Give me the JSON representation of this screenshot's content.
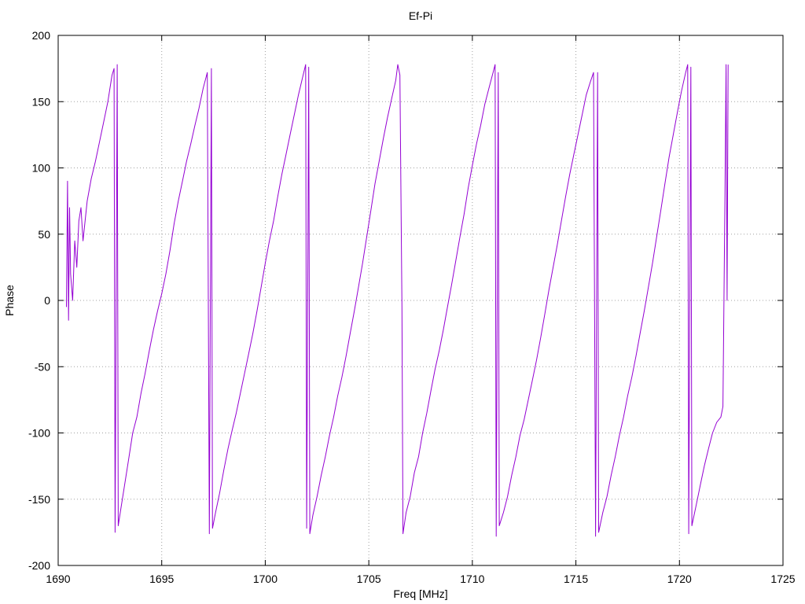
{
  "chart_data": {
    "type": "line",
    "title": "Ef-Pi",
    "xlabel": "Freq [MHz]",
    "ylabel": "Phase",
    "xlim": [
      1690,
      1725
    ],
    "ylim": [
      -200,
      200
    ],
    "xticks": [
      1690,
      1695,
      1700,
      1705,
      1710,
      1715,
      1720,
      1725
    ],
    "yticks": [
      -200,
      -150,
      -100,
      -50,
      0,
      50,
      100,
      150,
      200
    ],
    "grid": true,
    "legend": "none",
    "colors": {
      "series": "#9400d3"
    },
    "series": [
      {
        "points": [
          [
            1690.4,
            -5
          ],
          [
            1690.45,
            90
          ],
          [
            1690.5,
            -15
          ],
          [
            1690.55,
            70
          ],
          [
            1690.6,
            20
          ],
          [
            1690.7,
            0
          ],
          [
            1690.8,
            45
          ],
          [
            1690.9,
            25
          ],
          [
            1691.0,
            60
          ],
          [
            1691.1,
            70
          ],
          [
            1691.2,
            45
          ],
          [
            1691.4,
            75
          ],
          [
            1691.6,
            92
          ],
          [
            1691.8,
            105
          ],
          [
            1692.0,
            120
          ],
          [
            1692.2,
            135
          ],
          [
            1692.4,
            150
          ],
          [
            1692.6,
            170
          ],
          [
            1692.7,
            175
          ],
          [
            1692.75,
            -175
          ],
          [
            1692.8,
            0
          ],
          [
            1692.85,
            178
          ],
          [
            1692.9,
            -170
          ],
          [
            1693.0,
            -160
          ],
          [
            1693.2,
            -140
          ],
          [
            1693.4,
            -120
          ],
          [
            1693.6,
            -100
          ],
          [
            1693.8,
            -88
          ],
          [
            1694.0,
            -70
          ],
          [
            1694.2,
            -55
          ],
          [
            1694.4,
            -38
          ],
          [
            1694.6,
            -22
          ],
          [
            1694.8,
            -8
          ],
          [
            1695.0,
            5
          ],
          [
            1695.2,
            20
          ],
          [
            1695.4,
            38
          ],
          [
            1695.6,
            58
          ],
          [
            1695.8,
            75
          ],
          [
            1696.0,
            90
          ],
          [
            1696.2,
            105
          ],
          [
            1696.4,
            118
          ],
          [
            1696.6,
            132
          ],
          [
            1696.8,
            145
          ],
          [
            1697.0,
            160
          ],
          [
            1697.2,
            172
          ],
          [
            1697.3,
            -176
          ],
          [
            1697.35,
            5
          ],
          [
            1697.4,
            175
          ],
          [
            1697.45,
            -172
          ],
          [
            1697.6,
            -160
          ],
          [
            1697.8,
            -145
          ],
          [
            1698.0,
            -128
          ],
          [
            1698.2,
            -112
          ],
          [
            1698.4,
            -98
          ],
          [
            1698.6,
            -85
          ],
          [
            1698.8,
            -70
          ],
          [
            1699.0,
            -55
          ],
          [
            1699.2,
            -40
          ],
          [
            1699.4,
            -25
          ],
          [
            1699.6,
            -8
          ],
          [
            1699.8,
            10
          ],
          [
            1700.0,
            28
          ],
          [
            1700.2,
            45
          ],
          [
            1700.4,
            60
          ],
          [
            1700.6,
            78
          ],
          [
            1700.8,
            95
          ],
          [
            1701.0,
            110
          ],
          [
            1701.2,
            125
          ],
          [
            1701.4,
            140
          ],
          [
            1701.6,
            155
          ],
          [
            1701.8,
            168
          ],
          [
            1701.95,
            178
          ],
          [
            1702.0,
            -172
          ],
          [
            1702.05,
            0
          ],
          [
            1702.1,
            176
          ],
          [
            1702.15,
            -176
          ],
          [
            1702.3,
            -162
          ],
          [
            1702.5,
            -148
          ],
          [
            1702.7,
            -132
          ],
          [
            1702.9,
            -118
          ],
          [
            1703.1,
            -102
          ],
          [
            1703.3,
            -88
          ],
          [
            1703.5,
            -72
          ],
          [
            1703.7,
            -58
          ],
          [
            1703.9,
            -42
          ],
          [
            1704.1,
            -25
          ],
          [
            1704.3,
            -8
          ],
          [
            1704.5,
            10
          ],
          [
            1704.7,
            28
          ],
          [
            1704.9,
            48
          ],
          [
            1705.1,
            68
          ],
          [
            1705.3,
            88
          ],
          [
            1705.5,
            105
          ],
          [
            1705.7,
            122
          ],
          [
            1705.9,
            138
          ],
          [
            1706.1,
            152
          ],
          [
            1706.3,
            166
          ],
          [
            1706.4,
            178
          ],
          [
            1706.5,
            170
          ],
          [
            1706.6,
            -5
          ],
          [
            1706.65,
            -176
          ],
          [
            1706.8,
            -160
          ],
          [
            1707.0,
            -148
          ],
          [
            1707.2,
            -130
          ],
          [
            1707.4,
            -118
          ],
          [
            1707.6,
            -100
          ],
          [
            1707.8,
            -85
          ],
          [
            1708.0,
            -68
          ],
          [
            1708.2,
            -52
          ],
          [
            1708.4,
            -38
          ],
          [
            1708.6,
            -22
          ],
          [
            1708.8,
            -5
          ],
          [
            1709.0,
            12
          ],
          [
            1709.2,
            30
          ],
          [
            1709.4,
            48
          ],
          [
            1709.6,
            65
          ],
          [
            1709.8,
            85
          ],
          [
            1710.0,
            102
          ],
          [
            1710.2,
            118
          ],
          [
            1710.4,
            132
          ],
          [
            1710.6,
            148
          ],
          [
            1710.8,
            160
          ],
          [
            1711.0,
            172
          ],
          [
            1711.1,
            178
          ],
          [
            1711.15,
            -178
          ],
          [
            1711.2,
            0
          ],
          [
            1711.25,
            172
          ],
          [
            1711.3,
            -170
          ],
          [
            1711.5,
            -160
          ],
          [
            1711.7,
            -148
          ],
          [
            1711.9,
            -132
          ],
          [
            1712.1,
            -118
          ],
          [
            1712.3,
            -102
          ],
          [
            1712.5,
            -90
          ],
          [
            1712.7,
            -75
          ],
          [
            1712.9,
            -60
          ],
          [
            1713.1,
            -45
          ],
          [
            1713.3,
            -28
          ],
          [
            1713.5,
            -10
          ],
          [
            1713.7,
            8
          ],
          [
            1713.9,
            25
          ],
          [
            1714.1,
            42
          ],
          [
            1714.3,
            60
          ],
          [
            1714.5,
            78
          ],
          [
            1714.7,
            95
          ],
          [
            1714.9,
            110
          ],
          [
            1715.1,
            125
          ],
          [
            1715.3,
            140
          ],
          [
            1715.5,
            155
          ],
          [
            1715.7,
            165
          ],
          [
            1715.85,
            172
          ],
          [
            1715.95,
            -178
          ],
          [
            1716.0,
            0
          ],
          [
            1716.05,
            172
          ],
          [
            1716.1,
            -175
          ],
          [
            1716.3,
            -160
          ],
          [
            1716.5,
            -148
          ],
          [
            1716.7,
            -132
          ],
          [
            1716.9,
            -118
          ],
          [
            1717.1,
            -102
          ],
          [
            1717.3,
            -88
          ],
          [
            1717.5,
            -72
          ],
          [
            1717.7,
            -58
          ],
          [
            1717.9,
            -42
          ],
          [
            1718.1,
            -25
          ],
          [
            1718.3,
            -8
          ],
          [
            1718.5,
            10
          ],
          [
            1718.7,
            28
          ],
          [
            1718.9,
            48
          ],
          [
            1719.1,
            68
          ],
          [
            1719.3,
            88
          ],
          [
            1719.5,
            108
          ],
          [
            1719.7,
            125
          ],
          [
            1719.9,
            142
          ],
          [
            1720.1,
            158
          ],
          [
            1720.3,
            172
          ],
          [
            1720.4,
            178
          ],
          [
            1720.45,
            -176
          ],
          [
            1720.5,
            2
          ],
          [
            1720.55,
            176
          ],
          [
            1720.6,
            -170
          ],
          [
            1720.8,
            -155
          ],
          [
            1721.0,
            -140
          ],
          [
            1721.2,
            -125
          ],
          [
            1721.4,
            -112
          ],
          [
            1721.6,
            -100
          ],
          [
            1721.8,
            -92
          ],
          [
            1722.0,
            -88
          ],
          [
            1722.1,
            -80
          ],
          [
            1722.2,
            80
          ],
          [
            1722.25,
            178
          ],
          [
            1722.3,
            0
          ],
          [
            1722.35,
            178
          ]
        ]
      }
    ]
  }
}
